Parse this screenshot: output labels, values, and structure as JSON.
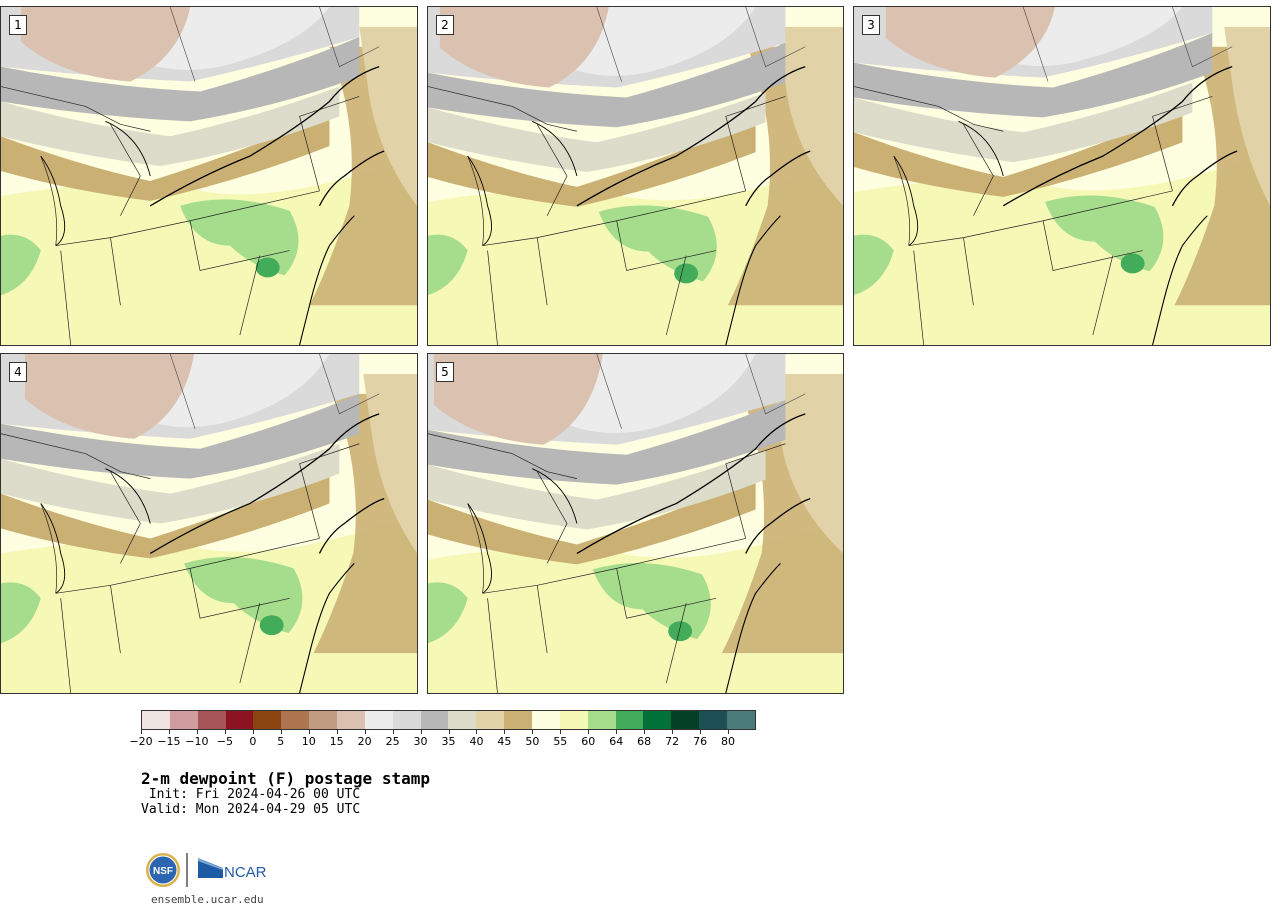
{
  "panels": [
    {
      "label": "1"
    },
    {
      "label": "2"
    },
    {
      "label": "3"
    },
    {
      "label": "4"
    },
    {
      "label": "5"
    }
  ],
  "colorbar": {
    "colors": [
      "#f0e4e2",
      "#cf9c9f",
      "#a85559",
      "#8d1322",
      "#8b4513",
      "#ad7650",
      "#c29c80",
      "#dbc1af",
      "#ececec",
      "#dadada",
      "#b7b7b7",
      "#dddcca",
      "#e1d2a7",
      "#cbb074",
      "#fefee0",
      "#f6f9b6",
      "#a6dd8c",
      "#43ac5b",
      "#027039",
      "#023f25",
      "#1c5056",
      "#4c7b7b"
    ],
    "tick_labels": [
      "−20",
      "−15",
      "−10",
      "−5",
      "0",
      "5",
      "10",
      "15",
      "20",
      "25",
      "30",
      "35",
      "40",
      "45",
      "50",
      "55",
      "60",
      "64",
      "68",
      "72",
      "76",
      "80"
    ]
  },
  "title": "2-m dewpoint (F) postage stamp",
  "init_line": " Init: Fri 2024-04-26 00 UTC",
  "valid_line": "Valid: Mon 2024-04-29 05 UTC",
  "logo": {
    "left_text": "NSF",
    "right_text": "NCAR",
    "brand_color": "#1f5aa5"
  },
  "footer_url": "ensemble.ucar.edu"
}
